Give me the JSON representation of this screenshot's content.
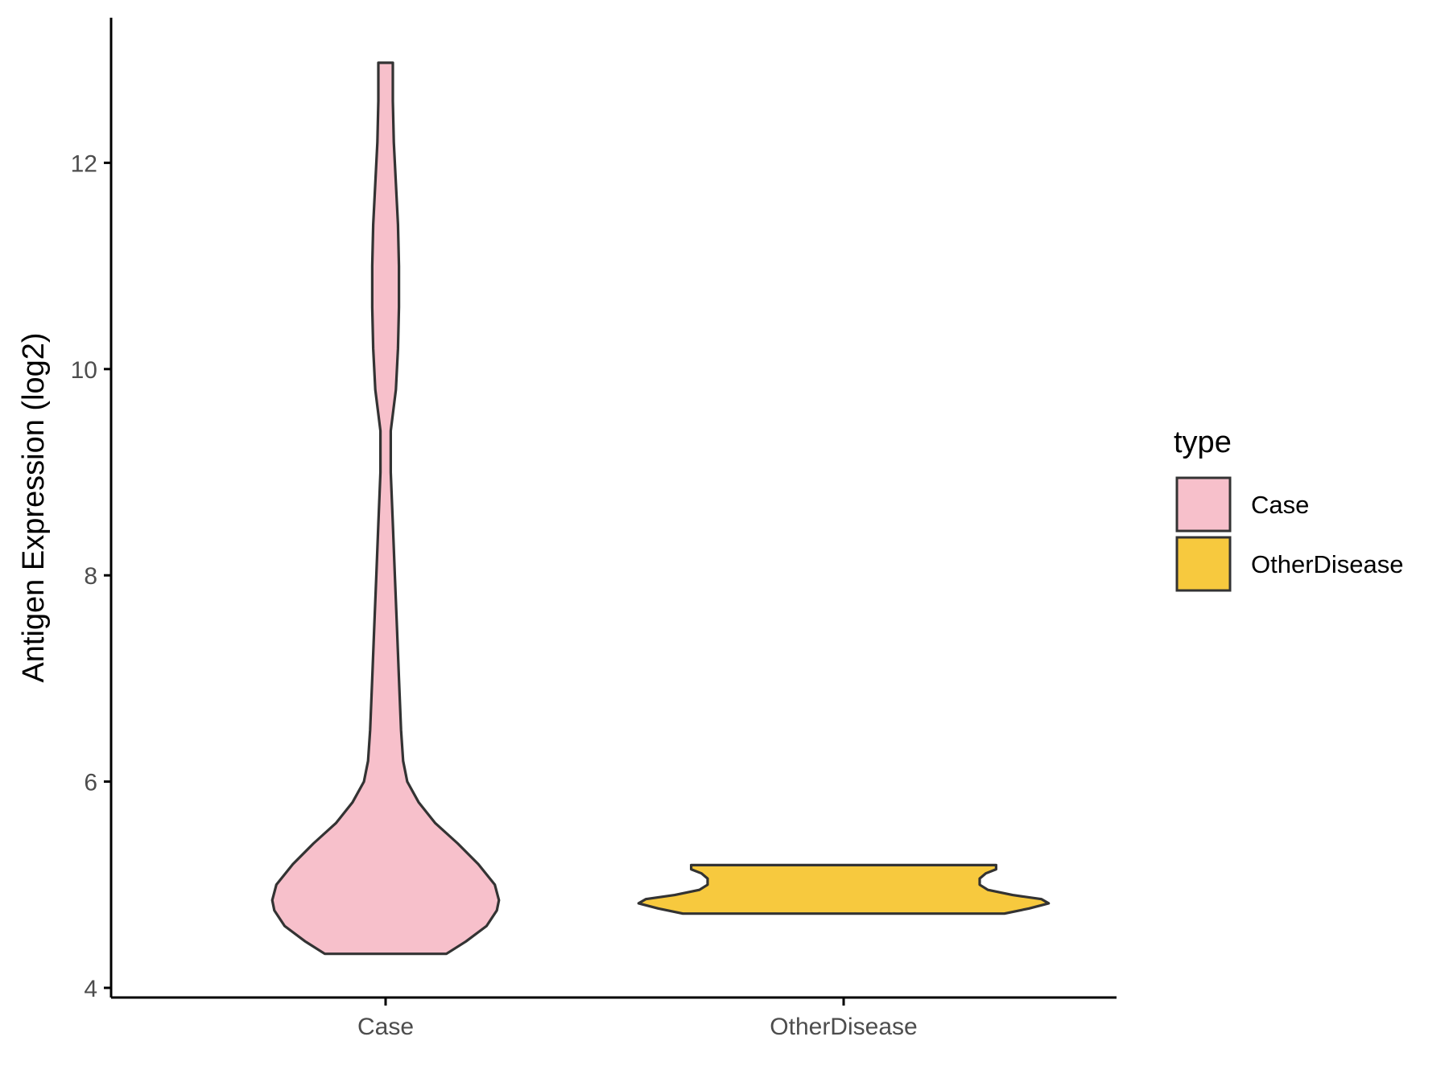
{
  "chart_data": {
    "type": "violin",
    "xlabel": "",
    "ylabel": "Antigen Expression (log2)",
    "ylim": [
      3.95,
      13.5
    ],
    "yticks": [
      4,
      6,
      8,
      10,
      12
    ],
    "categories": [
      "Case",
      "OtherDisease"
    ],
    "legend": {
      "title": "type",
      "placement": "right",
      "entries": [
        "Case",
        "OtherDisease"
      ]
    },
    "grid": false,
    "series": [
      {
        "name": "Case",
        "color": "#F7C0CB",
        "min": 4.33,
        "max": 12.97,
        "density": [
          [
            4.33,
            0.295
          ],
          [
            4.45,
            0.39
          ],
          [
            4.6,
            0.49
          ],
          [
            4.75,
            0.54
          ],
          [
            4.85,
            0.55
          ],
          [
            5.0,
            0.53
          ],
          [
            5.2,
            0.45
          ],
          [
            5.4,
            0.35
          ],
          [
            5.6,
            0.24
          ],
          [
            5.8,
            0.16
          ],
          [
            6.0,
            0.105
          ],
          [
            6.2,
            0.085
          ],
          [
            6.5,
            0.075
          ],
          [
            7.0,
            0.065
          ],
          [
            7.5,
            0.055
          ],
          [
            8.0,
            0.045
          ],
          [
            8.5,
            0.035
          ],
          [
            9.0,
            0.025
          ],
          [
            9.4,
            0.025
          ],
          [
            9.8,
            0.05
          ],
          [
            10.2,
            0.06
          ],
          [
            10.6,
            0.065
          ],
          [
            11.0,
            0.065
          ],
          [
            11.4,
            0.06
          ],
          [
            11.8,
            0.05
          ],
          [
            12.2,
            0.04
          ],
          [
            12.6,
            0.035
          ],
          [
            12.97,
            0.035
          ]
        ]
      },
      {
        "name": "OtherDisease",
        "color": "#F7C93E",
        "min": 4.72,
        "max": 5.19,
        "density": [
          [
            4.72,
            0.78
          ],
          [
            4.77,
            0.9
          ],
          [
            4.82,
            0.995
          ],
          [
            4.86,
            0.96
          ],
          [
            4.9,
            0.82
          ],
          [
            4.95,
            0.7
          ],
          [
            5.0,
            0.66
          ],
          [
            5.06,
            0.66
          ],
          [
            5.11,
            0.69
          ],
          [
            5.15,
            0.74
          ],
          [
            5.19,
            0.74
          ]
        ]
      }
    ]
  }
}
